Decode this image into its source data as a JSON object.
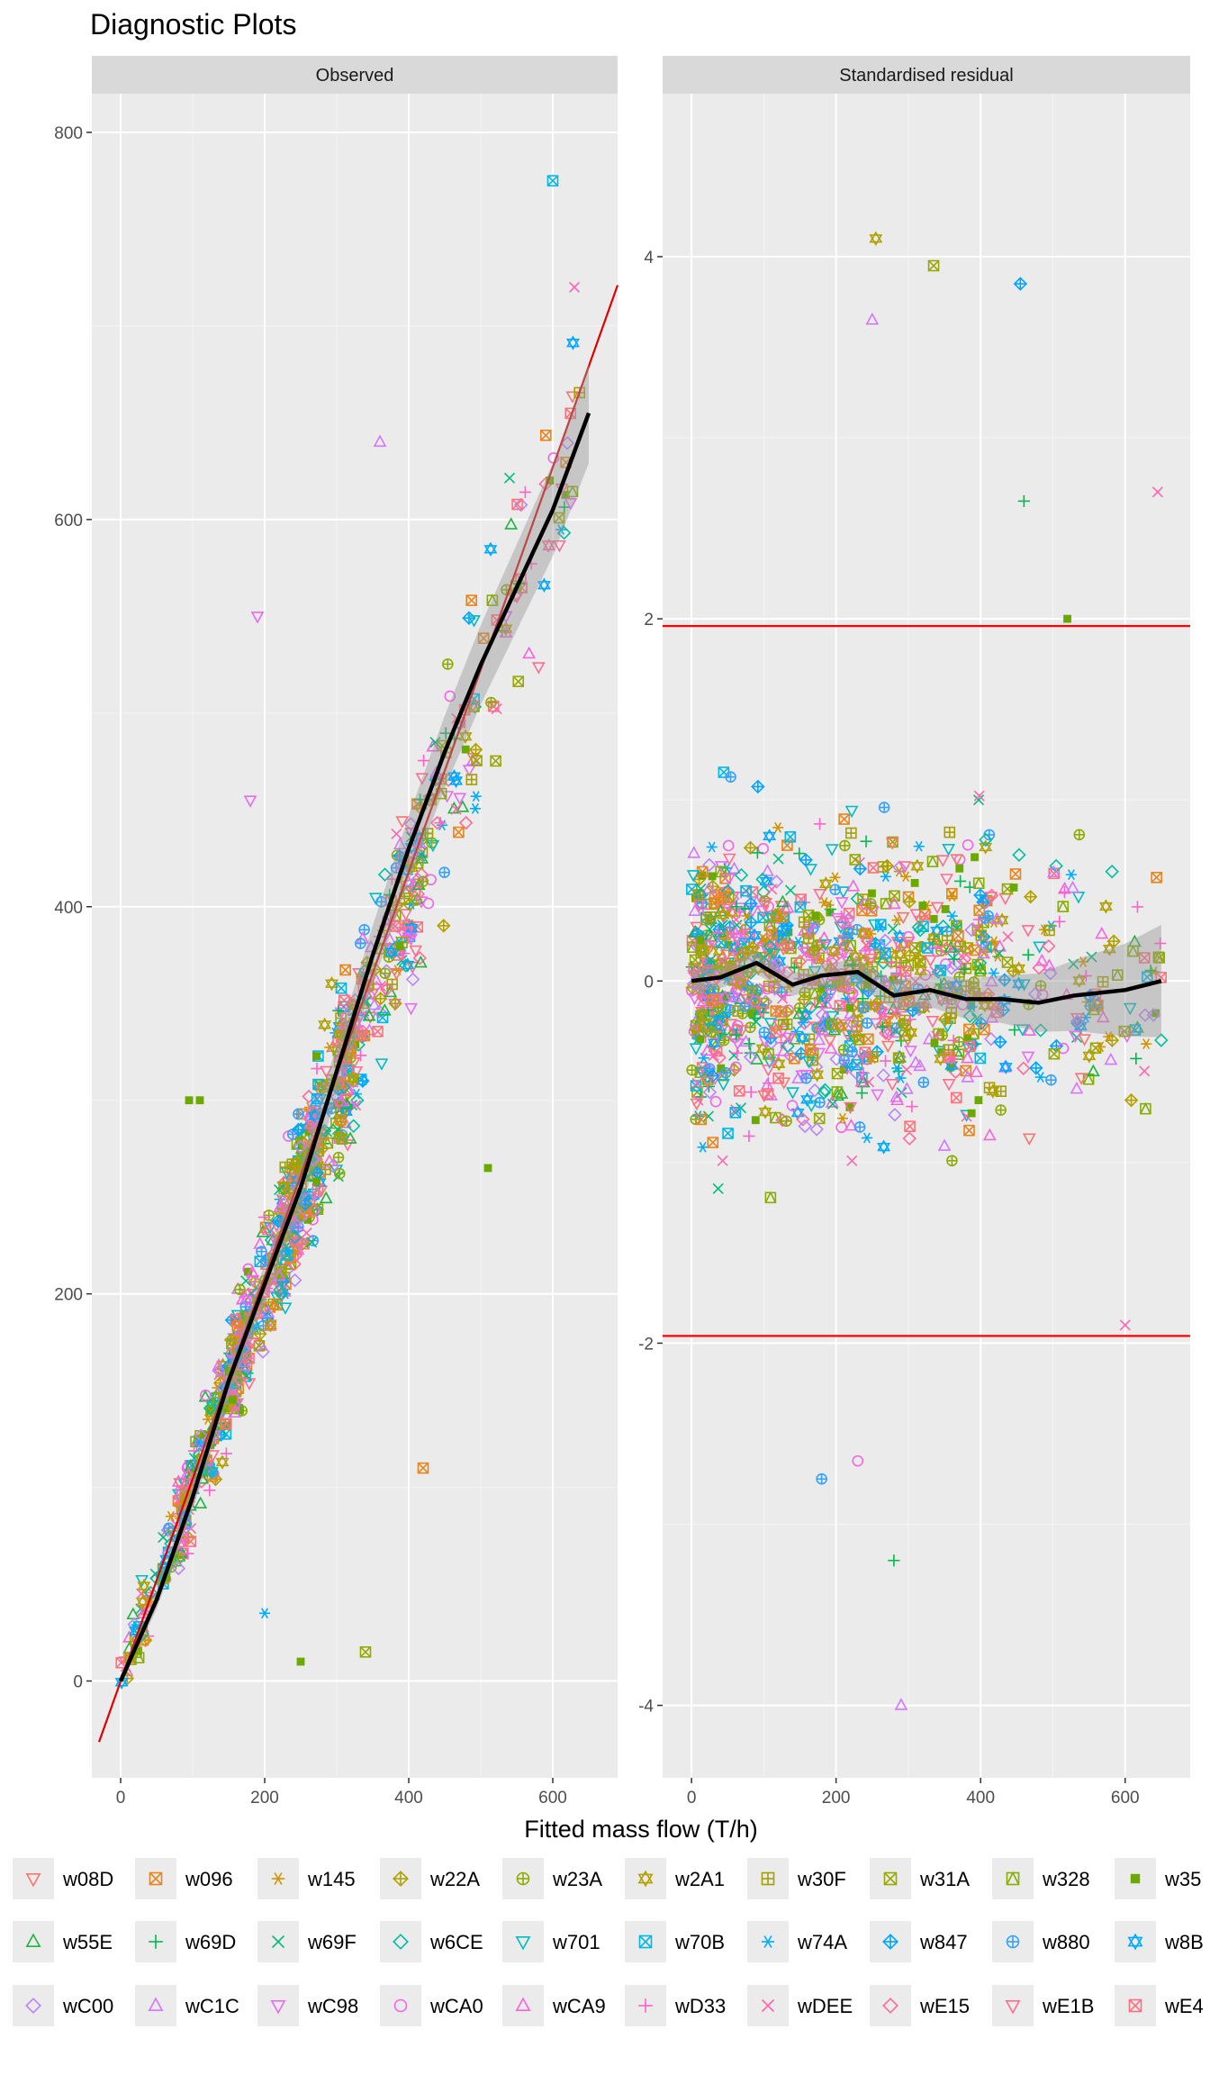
{
  "chart_data": {
    "type": "scatter",
    "title": "Diagnostic Plots",
    "xlabel": "Fitted mass flow (T/h)",
    "xlim": [
      -40,
      690
    ],
    "x_ticks": [
      0,
      200,
      400,
      600
    ],
    "panels": [
      {
        "strip": "Observed",
        "ylabel": "",
        "ylim": [
          -50,
          820
        ],
        "y_ticks": [
          0,
          200,
          400,
          600,
          800
        ],
        "reference_line": {
          "type": "y=x",
          "color": "#e00000"
        },
        "smooth_curve": [
          [
            0,
            0
          ],
          [
            50,
            42
          ],
          [
            100,
            95
          ],
          [
            150,
            155
          ],
          [
            200,
            205
          ],
          [
            250,
            255
          ],
          [
            300,
            315
          ],
          [
            350,
            375
          ],
          [
            400,
            430
          ],
          [
            450,
            480
          ],
          [
            500,
            525
          ],
          [
            550,
            565
          ],
          [
            600,
            605
          ],
          [
            650,
            655
          ]
        ],
        "point_clusters": [
          {
            "x": [
              0,
              100
            ],
            "y": [
              -5,
              110
            ],
            "n": 90
          },
          {
            "x": [
              80,
              180
            ],
            "y": [
              40,
              230
            ],
            "n": 220
          },
          {
            "x": [
              150,
              280
            ],
            "y": [
              100,
              340
            ],
            "n": 260
          },
          {
            "x": [
              220,
              340
            ],
            "y": [
              200,
              420
            ],
            "n": 200
          },
          {
            "x": [
              300,
              420
            ],
            "y": [
              280,
              600
            ],
            "n": 160
          },
          {
            "x": [
              380,
              500
            ],
            "y": [
              350,
              620
            ],
            "n": 90
          },
          {
            "x": [
              500,
              640
            ],
            "y": [
              420,
              740
            ],
            "n": 50
          }
        ],
        "outlier_points": [
          {
            "x": 600,
            "y": 775,
            "series": "w70B"
          },
          {
            "x": 630,
            "y": 720,
            "series": "wDEE"
          },
          {
            "x": 190,
            "y": 550,
            "series": "wC98"
          },
          {
            "x": 180,
            "y": 455,
            "series": "wC98"
          },
          {
            "x": 360,
            "y": 640,
            "series": "wC1C"
          },
          {
            "x": 95,
            "y": 300,
            "series": "w35"
          },
          {
            "x": 110,
            "y": 300,
            "series": "w35"
          },
          {
            "x": 420,
            "y": 110,
            "series": "w096"
          },
          {
            "x": 340,
            "y": 15,
            "series": "w31A"
          },
          {
            "x": 250,
            "y": 10,
            "series": "w35"
          },
          {
            "x": 200,
            "y": 35,
            "series": "w74A"
          },
          {
            "x": 510,
            "y": 265,
            "series": "w35"
          }
        ]
      },
      {
        "strip": "Standardised residual",
        "ylabel": "",
        "ylim": [
          -4.4,
          4.9
        ],
        "y_ticks": [
          -4,
          -2,
          0,
          2,
          4
        ],
        "reference_lines": [
          1.96,
          -1.96
        ],
        "smooth_curve": [
          [
            0,
            0
          ],
          [
            40,
            0.02
          ],
          [
            90,
            0.1
          ],
          [
            140,
            -0.02
          ],
          [
            180,
            0.03
          ],
          [
            230,
            0.05
          ],
          [
            280,
            -0.08
          ],
          [
            330,
            -0.05
          ],
          [
            380,
            -0.1
          ],
          [
            430,
            -0.1
          ],
          [
            480,
            -0.12
          ],
          [
            530,
            -0.08
          ],
          [
            600,
            -0.05
          ],
          [
            650,
            0
          ]
        ],
        "point_clusters": [
          {
            "x": [
              0,
              60
            ],
            "y": [
              -1.9,
              1.9
            ],
            "n": 260
          },
          {
            "x": [
              60,
              180
            ],
            "y": [
              -1.9,
              1.9
            ],
            "n": 320
          },
          {
            "x": [
              180,
              300
            ],
            "y": [
              -1.9,
              1.9
            ],
            "n": 300
          },
          {
            "x": [
              300,
              420
            ],
            "y": [
              -1.8,
              1.6
            ],
            "n": 220
          },
          {
            "x": [
              420,
              560
            ],
            "y": [
              -1.5,
              1.5
            ],
            "n": 90
          },
          {
            "x": [
              560,
              650
            ],
            "y": [
              -1.5,
              1.5
            ],
            "n": 40
          }
        ],
        "outlier_points": [
          {
            "x": 255,
            "y": 4.1,
            "series": "w2A1"
          },
          {
            "x": 335,
            "y": 3.95,
            "series": "w31A"
          },
          {
            "x": 455,
            "y": 3.85,
            "series": "w847"
          },
          {
            "x": 250,
            "y": 3.65,
            "series": "wC1C"
          },
          {
            "x": 290,
            "y": -4.0,
            "series": "wC1C"
          },
          {
            "x": 280,
            "y": -3.2,
            "series": "w69D"
          },
          {
            "x": 460,
            "y": 2.65,
            "series": "w69D"
          },
          {
            "x": 645,
            "y": 2.7,
            "series": "wDEE"
          },
          {
            "x": 180,
            "y": -2.75,
            "series": "w880"
          },
          {
            "x": 230,
            "y": -2.65,
            "series": "wCA0"
          },
          {
            "x": 600,
            "y": -1.9,
            "series": "wDEE"
          },
          {
            "x": 520,
            "y": 2.0,
            "series": "w35"
          }
        ]
      }
    ],
    "legend": {
      "position": "bottom",
      "entries": [
        {
          "name": "w08D",
          "color": "#F8766D",
          "shape": "triangle-down-open"
        },
        {
          "name": "w096",
          "color": "#E7851E",
          "shape": "square-x"
        },
        {
          "name": "w145",
          "color": "#D09400",
          "shape": "asterisk"
        },
        {
          "name": "w22A",
          "color": "#B2A100",
          "shape": "diamond-plus"
        },
        {
          "name": "w23A",
          "color": "#8EAB00",
          "shape": "circle-plus"
        },
        {
          "name": "w2A1",
          "color": "#B2A100",
          "shape": "star-of-david"
        },
        {
          "name": "w30F",
          "color": "#A5A000",
          "shape": "square-plus"
        },
        {
          "name": "w31A",
          "color": "#99A800",
          "shape": "square-x"
        },
        {
          "name": "w328",
          "color": "#88AD00",
          "shape": "square-triangle"
        },
        {
          "name": "w35",
          "color": "#6BA800",
          "shape": "square-filled"
        },
        {
          "name": "w55E",
          "color": "#1FB33F",
          "shape": "triangle-open"
        },
        {
          "name": "w69D",
          "color": "#00B850",
          "shape": "plus"
        },
        {
          "name": "w69F",
          "color": "#00BC7F",
          "shape": "x"
        },
        {
          "name": "w6CE",
          "color": "#00BFA0",
          "shape": "diamond-open"
        },
        {
          "name": "w701",
          "color": "#00BDC2",
          "shape": "triangle-down-open"
        },
        {
          "name": "w70B",
          "color": "#00B8E5",
          "shape": "square-x"
        },
        {
          "name": "w74A",
          "color": "#00ADFA",
          "shape": "asterisk"
        },
        {
          "name": "w847",
          "color": "#00A5FF",
          "shape": "diamond-plus"
        },
        {
          "name": "w880",
          "color": "#35A2FF",
          "shape": "circle-plus"
        },
        {
          "name": "w8B",
          "color": "#00A9FF",
          "shape": "star-of-david"
        },
        {
          "name": "wC00",
          "color": "#B983FF",
          "shape": "diamond-open"
        },
        {
          "name": "wC1C",
          "color": "#D575FE",
          "shape": "triangle-open"
        },
        {
          "name": "wC98",
          "color": "#E76BF3",
          "shape": "triangle-down-open"
        },
        {
          "name": "wCA0",
          "color": "#F365E6",
          "shape": "circle-open"
        },
        {
          "name": "wCA9",
          "color": "#FA62DB",
          "shape": "triangle-open"
        },
        {
          "name": "wD33",
          "color": "#FF61C9",
          "shape": "plus"
        },
        {
          "name": "wDEE",
          "color": "#FF65AE",
          "shape": "x"
        },
        {
          "name": "wE15",
          "color": "#FF6A98",
          "shape": "diamond-open"
        },
        {
          "name": "wE1B",
          "color": "#FF6C91",
          "shape": "triangle-down-open"
        },
        {
          "name": "wE4",
          "color": "#FC717F",
          "shape": "square-x"
        }
      ]
    }
  }
}
